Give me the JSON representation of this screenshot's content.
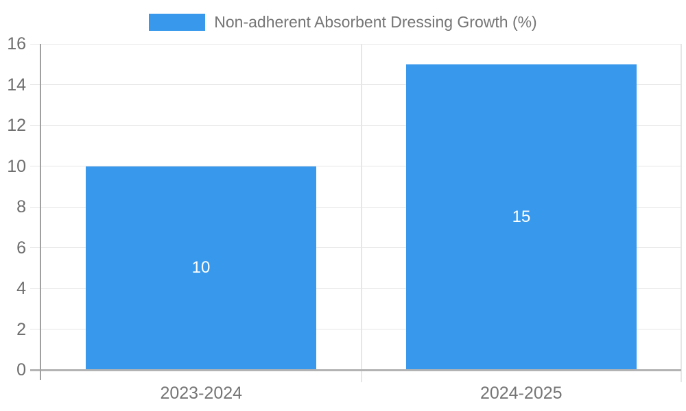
{
  "legend": {
    "label": "Non-adherent Absorbent Dressing Growth (%)",
    "swatch_color": "#3899EC"
  },
  "chart_data": {
    "type": "bar",
    "title": "",
    "xlabel": "",
    "ylabel": "",
    "categories": [
      "2023-2024",
      "2024-2025"
    ],
    "series": [
      {
        "name": "Non-adherent Absorbent Dressing Growth (%)",
        "values": [
          10,
          15
        ],
        "color": "#3899EC"
      }
    ],
    "values": [
      10,
      15
    ],
    "bar_value_labels": [
      "10",
      "15"
    ],
    "ylim": [
      0,
      16
    ],
    "yticks": [
      0,
      2,
      4,
      6,
      8,
      10,
      12,
      14,
      16
    ],
    "grid": true,
    "legend_position": "top",
    "colors": {
      "bar": "#3899EC",
      "bar_label": "#FFFFFF",
      "grid_line": "#E6E6E6",
      "divider_line": "#E6E6E6",
      "axis_line": "#A0A0A0",
      "baseline": "#B3B3B3",
      "tick_label": "#6E6E6E",
      "category_label": "#757575",
      "legend_text": "#757575",
      "background": "#FFFFFF"
    }
  }
}
